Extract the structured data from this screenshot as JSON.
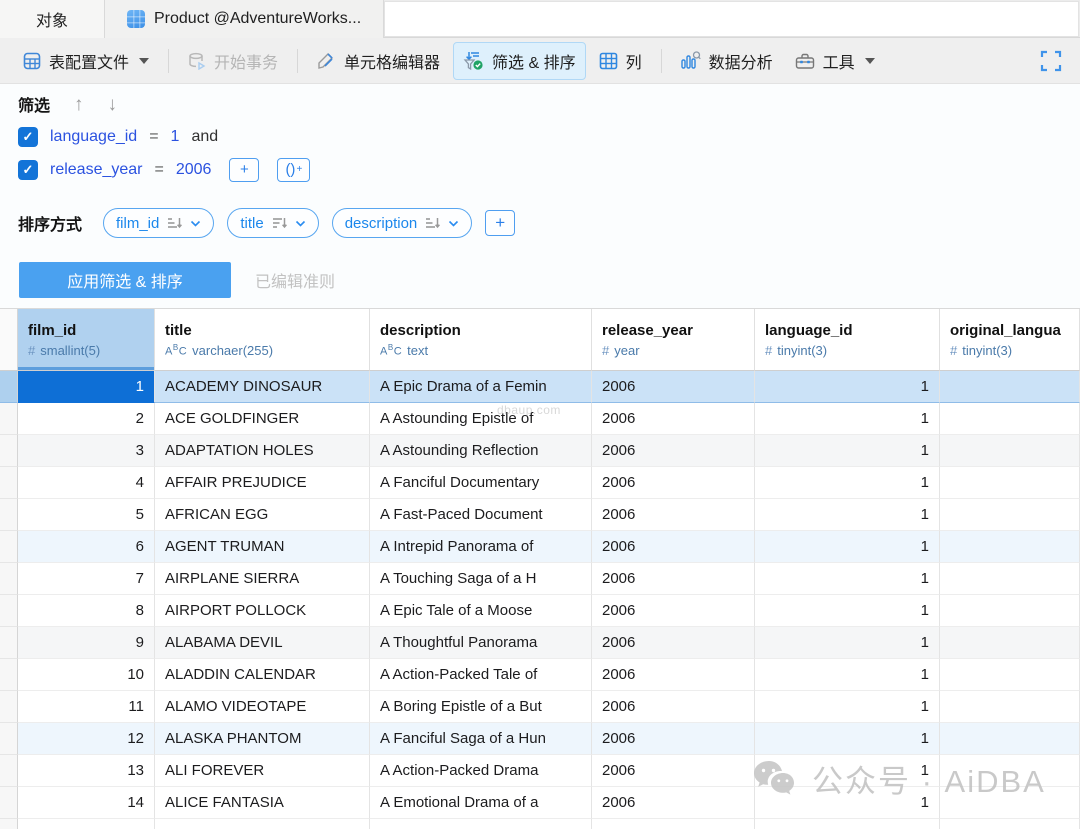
{
  "tabs": {
    "objects": "对象",
    "product": "Product @AdventureWorks..."
  },
  "toolbar": {
    "table_profile": "表配置文件",
    "begin_transaction": "开始事务",
    "cell_editor": "单元格编辑器",
    "filter_sort": "筛选 & 排序",
    "columns": "列",
    "data_analysis": "数据分析",
    "tools": "工具"
  },
  "filter": {
    "title": "筛选",
    "conditions": [
      {
        "checked": true,
        "field": "language_id",
        "operator": "=",
        "value": "1",
        "conjunction": "and"
      },
      {
        "checked": true,
        "field": "release_year",
        "operator": "=",
        "value": "2006",
        "conjunction": ""
      }
    ],
    "add_label": "+",
    "add_group_label": "()"
  },
  "sort": {
    "title": "排序方式",
    "items": [
      {
        "field": "film_id",
        "direction": "asc"
      },
      {
        "field": "title",
        "direction": "desc"
      },
      {
        "field": "description",
        "direction": "asc"
      }
    ],
    "add_label": "+"
  },
  "actions": {
    "apply": "应用筛选 & 排序",
    "edited_note": "已编辑准则"
  },
  "grid": {
    "columns": [
      {
        "name": "film_id",
        "type": "smallint(5)",
        "kind": "number"
      },
      {
        "name": "title",
        "type": "varchaer(255)",
        "kind": "text"
      },
      {
        "name": "description",
        "type": "text",
        "kind": "text"
      },
      {
        "name": "release_year",
        "type": "year",
        "kind": "number_left"
      },
      {
        "name": "language_id",
        "type": "tinyint(3)",
        "kind": "number"
      },
      {
        "name": "original_langua",
        "type": "tinyint(3)",
        "kind": "number"
      }
    ],
    "rows": [
      [
        "1",
        "ACADEMY DINOSAUR",
        "A Epic Drama of a Femin",
        "2006",
        "1",
        ""
      ],
      [
        "2",
        "ACE GOLDFINGER",
        "A Astounding Epistle of",
        "2006",
        "1",
        ""
      ],
      [
        "3",
        "ADAPTATION HOLES",
        "A Astounding Reflection",
        "2006",
        "1",
        ""
      ],
      [
        "4",
        "AFFAIR PREJUDICE",
        "A Fanciful Documentary",
        "2006",
        "1",
        ""
      ],
      [
        "5",
        "AFRICAN EGG",
        "A Fast-Paced Document",
        "2006",
        "1",
        ""
      ],
      [
        "6",
        "AGENT TRUMAN",
        "A Intrepid Panorama of",
        "2006",
        "1",
        ""
      ],
      [
        "7",
        "AIRPLANE SIERRA",
        "A Touching Saga of a H",
        "2006",
        "1",
        ""
      ],
      [
        "8",
        "AIRPORT POLLOCK",
        "A Epic Tale of a Moose",
        "2006",
        "1",
        ""
      ],
      [
        "9",
        "ALABAMA DEVIL",
        "A Thoughtful Panorama",
        "2006",
        "1",
        ""
      ],
      [
        "10",
        "ALADDIN CALENDAR",
        "A Action-Packed Tale of",
        "2006",
        "1",
        ""
      ],
      [
        "11",
        "ALAMO VIDEOTAPE",
        "A Boring Epistle of a But",
        "2006",
        "1",
        ""
      ],
      [
        "12",
        "ALASKA PHANTOM",
        "A Fanciful Saga of a Hun",
        "2006",
        "1",
        ""
      ],
      [
        "13",
        "ALI FOREVER",
        "A Action-Packed Drama",
        "2006",
        "1",
        ""
      ],
      [
        "14",
        "ALICE FANTASIA",
        "A Emotional Drama of a",
        "2006",
        "1",
        ""
      ]
    ],
    "selected_row": 1,
    "stripe_rows_gray": [
      3,
      9
    ],
    "stripe_rows_blue": [
      6,
      12
    ]
  },
  "watermarks": {
    "site": "dbaup.com",
    "brand": "公众号 · AiDBA"
  },
  "colors": {
    "accent": "#1374d8",
    "selection_cell": "#0e6fd6",
    "selection_row": "#cbe2f7",
    "apply_button": "#4aa1f0",
    "filter_text": "#2b52e0",
    "type_text": "#4a7aaa"
  }
}
